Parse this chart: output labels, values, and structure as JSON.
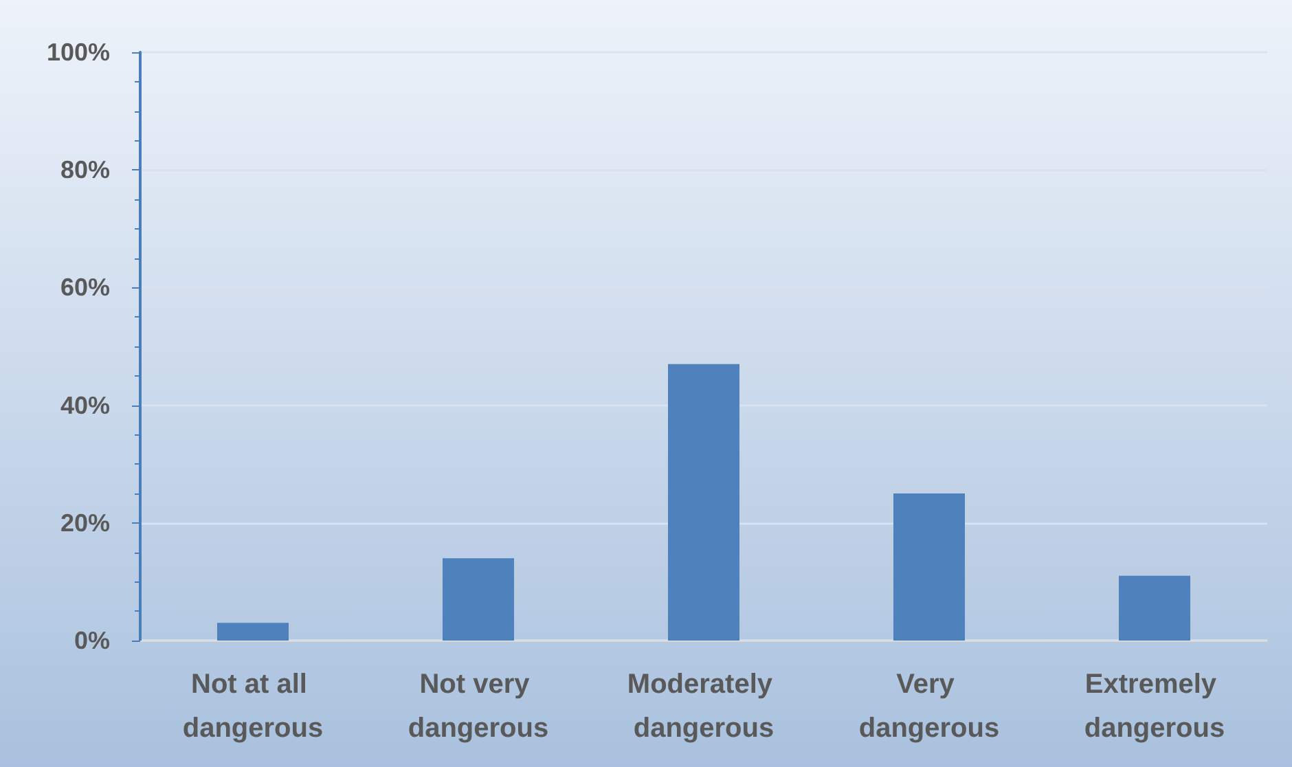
{
  "chart_data": {
    "type": "bar",
    "categories": [
      "Not at all dangerous",
      "Not very dangerous",
      "Moderately dangerous",
      "Very dangerous",
      "Extremely dangerous"
    ],
    "values": [
      3,
      14,
      47,
      25,
      11
    ],
    "color": "#4f81bd",
    "ylim": [
      0,
      100
    ],
    "yticks": [
      {
        "value": 0,
        "label": "0%"
      },
      {
        "value": 20,
        "label": "20%"
      },
      {
        "value": 40,
        "label": "40%"
      },
      {
        "value": 60,
        "label": "60%"
      },
      {
        "value": 80,
        "label": "80%"
      },
      {
        "value": 100,
        "label": "100%"
      }
    ],
    "grid": "y"
  }
}
